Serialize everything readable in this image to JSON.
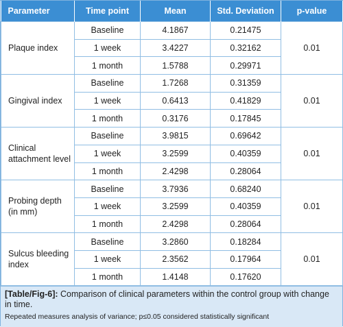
{
  "header": [
    "Parameter",
    "Time point",
    "Mean",
    "Std. Deviation",
    "p-value"
  ],
  "table": {
    "groups": [
      {
        "parameter": "Plaque index",
        "p_value": "0.01",
        "rows": [
          [
            "Baseline",
            "4.1867",
            "0.21475"
          ],
          [
            "1 week",
            "3.4227",
            "0.32162"
          ],
          [
            "1 month",
            "1.5788",
            "0.29971"
          ]
        ]
      },
      {
        "parameter": "Gingival index",
        "p_value": "0.01",
        "rows": [
          [
            "Baseline",
            "1.7268",
            "0.31359"
          ],
          [
            "1 week",
            "0.6413",
            "0.41829"
          ],
          [
            "1 month",
            "0.3176",
            "0.17845"
          ]
        ]
      },
      {
        "parameter": "Clinical attachment level",
        "p_value": "0.01",
        "rows": [
          [
            "Baseline",
            "3.9815",
            "0.69642"
          ],
          [
            "1 week",
            "3.2599",
            "0.40359"
          ],
          [
            "1 month",
            "2.4298",
            "0.28064"
          ]
        ]
      },
      {
        "parameter": "Probing depth (in mm)",
        "p_value": "0.01",
        "rows": [
          [
            "Baseline",
            "3.7936",
            "0.68240"
          ],
          [
            "1 week",
            "3.2599",
            "0.40359"
          ],
          [
            "1 month",
            "2.4298",
            "0.28064"
          ]
        ]
      },
      {
        "parameter": "Sulcus bleeding index",
        "p_value": "0.01",
        "rows": [
          [
            "Baseline",
            "3.2860",
            "0.18284"
          ],
          [
            "1 week",
            "2.3562",
            "0.17964"
          ],
          [
            "1 month",
            "1.4148",
            "0.17620"
          ]
        ]
      }
    ]
  },
  "caption": {
    "label": "[Table/Fig-6]:",
    "text": "Comparison of clinical parameters within the control group with change in time.",
    "note": "Repeated measures analysis of variance; p≤0.05 considered statistically significant"
  }
}
